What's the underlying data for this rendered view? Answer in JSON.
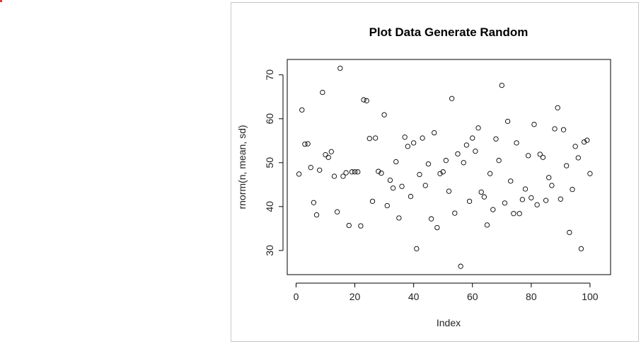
{
  "chart_data": {
    "type": "scatter",
    "title": "Plot Data Generate Random",
    "xlabel": "Index",
    "ylabel": "rnorm(n, mean, sd)",
    "xlim": [
      -3,
      107
    ],
    "ylim": [
      24.5,
      73.5
    ],
    "x_ticks": [
      0,
      20,
      40,
      60,
      80,
      100
    ],
    "y_ticks": [
      30,
      40,
      50,
      60,
      70
    ],
    "marker": "open-circle",
    "grid": false,
    "legend": "none",
    "x": [
      1,
      2,
      3,
      4,
      5,
      6,
      7,
      8,
      9,
      10,
      11,
      12,
      13,
      14,
      15,
      16,
      17,
      18,
      19,
      20,
      21,
      22,
      23,
      24,
      25,
      26,
      27,
      28,
      29,
      30,
      31,
      32,
      33,
      34,
      35,
      36,
      37,
      38,
      39,
      40,
      41,
      42,
      43,
      44,
      45,
      46,
      47,
      48,
      49,
      50,
      51,
      52,
      53,
      54,
      55,
      56,
      57,
      58,
      59,
      60,
      61,
      62,
      63,
      64,
      65,
      66,
      67,
      68,
      69,
      70,
      71,
      72,
      73,
      74,
      75,
      76,
      77,
      78,
      79,
      80,
      81,
      82,
      83,
      84,
      85,
      86,
      87,
      88,
      89,
      90,
      91,
      92,
      93,
      94,
      95,
      96,
      97,
      98,
      99,
      100
    ],
    "y": [
      47.4,
      62.0,
      54.2,
      54.3,
      48.9,
      40.9,
      38.1,
      48.3,
      66.0,
      51.8,
      51.2,
      52.5,
      46.9,
      38.8,
      71.5,
      46.9,
      47.7,
      35.7,
      47.9,
      47.9,
      47.9,
      35.6,
      64.3,
      64.1,
      55.5,
      41.2,
      55.6,
      48.0,
      47.6,
      60.9,
      40.2,
      46.0,
      44.2,
      50.2,
      37.4,
      44.6,
      55.8,
      53.7,
      42.3,
      54.5,
      30.4,
      47.3,
      55.6,
      44.8,
      49.7,
      37.2,
      56.8,
      35.2,
      47.5,
      47.9,
      50.5,
      43.5,
      64.6,
      38.5,
      52.0,
      26.4,
      50.0,
      54.0,
      41.2,
      55.6,
      52.6,
      57.9,
      43.3,
      42.2,
      35.8,
      47.5,
      39.3,
      55.4,
      50.5,
      67.6,
      40.8,
      59.4,
      45.8,
      38.4,
      54.5,
      38.4,
      41.6,
      44.0,
      51.6,
      42.0,
      58.7,
      40.4,
      51.9,
      51.2,
      41.4,
      46.6,
      44.8,
      57.7,
      62.5,
      41.7,
      57.5,
      49.3,
      34.1,
      43.9,
      53.7,
      51.1,
      30.4,
      54.7,
      55.1,
      47.5
    ]
  }
}
